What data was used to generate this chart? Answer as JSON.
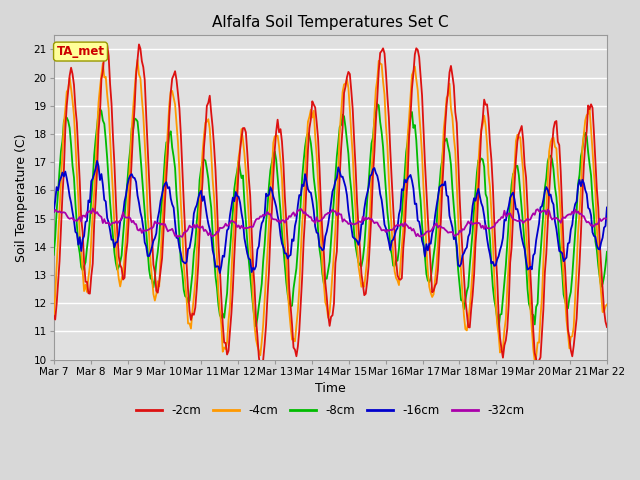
{
  "title": "Alfalfa Soil Temperatures Set C",
  "xlabel": "Time",
  "ylabel": "Soil Temperature (C)",
  "ylim": [
    10.0,
    21.5
  ],
  "yticks": [
    10.0,
    11.0,
    12.0,
    13.0,
    14.0,
    15.0,
    16.0,
    17.0,
    18.0,
    19.0,
    20.0,
    21.0
  ],
  "xtick_labels": [
    "Mar 7",
    "Mar 8",
    "Mar 9",
    "Mar 10",
    "Mar 11",
    "Mar 12",
    "Mar 13",
    "Mar 14",
    "Mar 15",
    "Mar 16",
    "Mar 17",
    "Mar 18",
    "Mar 19",
    "Mar 20",
    "Mar 21",
    "Mar 22"
  ],
  "line_colors": [
    "#dd1111",
    "#ff9900",
    "#00bb00",
    "#0000cc",
    "#aa00aa"
  ],
  "line_labels": [
    "-2cm",
    "-4cm",
    "-8cm",
    "-16cm",
    "-32cm"
  ],
  "bg_color": "#d8d8d8",
  "plot_bg_color": "#e0e0e0",
  "grid_color": "#ffffff",
  "annotation_text": "TA_met",
  "annotation_bg": "#ffff99",
  "annotation_border": "#999900",
  "annotation_text_color": "#cc0000",
  "figsize": [
    6.4,
    4.8
  ],
  "dpi": 100
}
